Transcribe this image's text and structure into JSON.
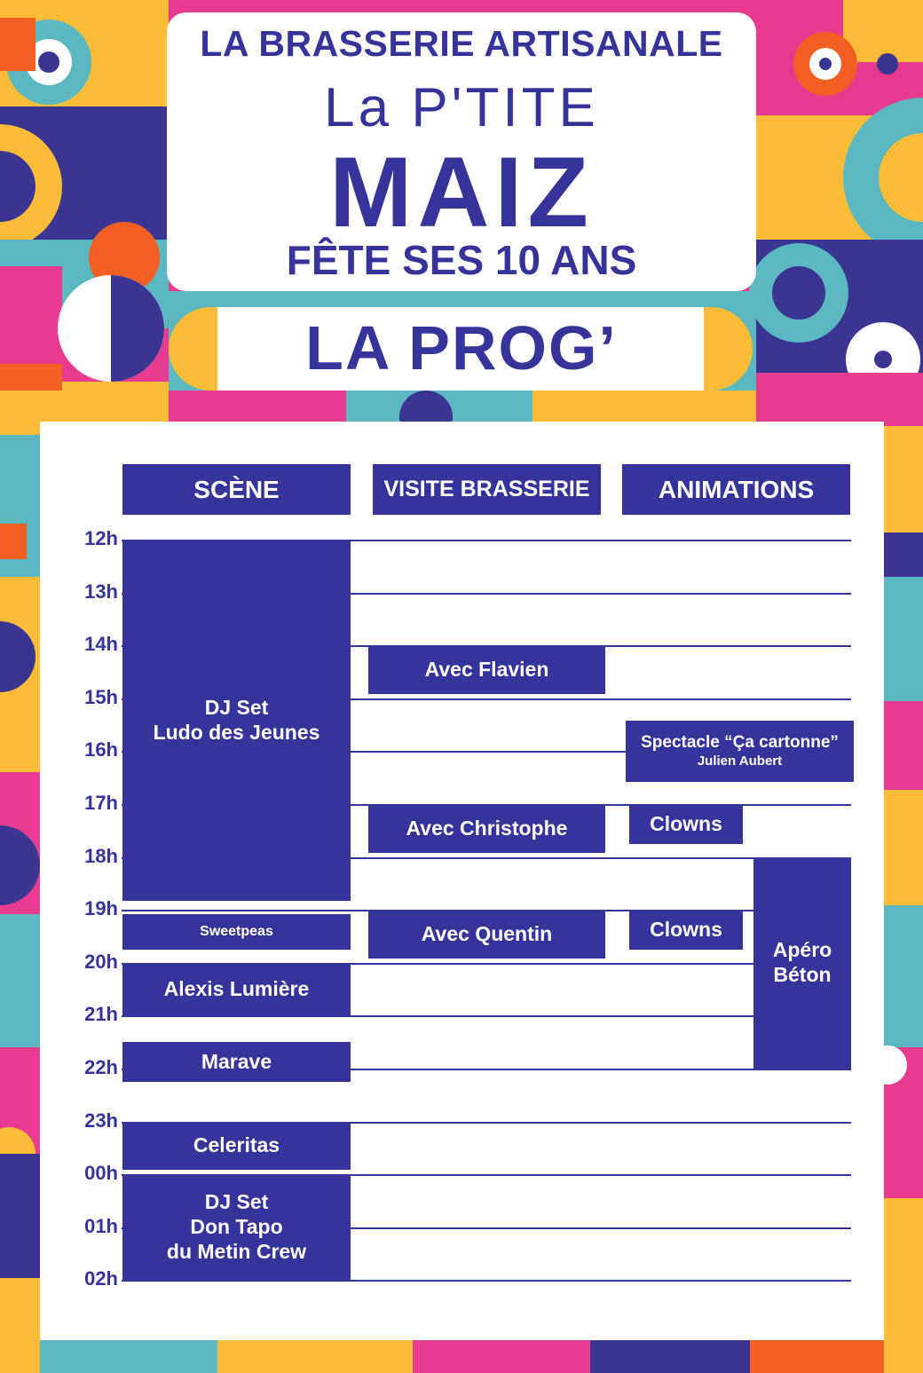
{
  "poster": {
    "line_top": "LA BRASSERIE ARTISANALE",
    "logo_small": "La P'TITE",
    "logo_big": "MAIZ",
    "line_bottom": "FÊTE SES 10 ANS",
    "prog_title": "LA PROG’"
  },
  "colors": {
    "navy": "#36349a",
    "pink": "#e63b8f",
    "teal": "#5bb8c0",
    "yellow": "#fbbd38",
    "orange": "#f16022",
    "white": "#ffffff"
  },
  "columns": [
    "SCÈNE",
    "VISITE BRASSERIE",
    "ANIMATIONS"
  ],
  "hours": [
    "12h",
    "13h",
    "14h",
    "15h",
    "16h",
    "17h",
    "18h",
    "19h",
    "20h",
    "21h",
    "22h",
    "23h",
    "00h",
    "01h",
    "02h"
  ],
  "events": {
    "scene": [
      {
        "start": "12h00",
        "end": "18h50",
        "lines": [
          "DJ Set",
          "Ludo des Jeunes"
        ]
      },
      {
        "start": "19h05",
        "end": "19h45",
        "lines": [
          "Sweetpeas"
        ]
      },
      {
        "start": "20h00",
        "end": "21h00",
        "lines": [
          "Alexis Lumière"
        ]
      },
      {
        "start": "21h30",
        "end": "22h15",
        "lines": [
          "Marave"
        ]
      },
      {
        "start": "23h00",
        "end": "23h55",
        "lines": [
          "Celeritas"
        ]
      },
      {
        "start": "00h00",
        "end": "02h00",
        "lines": [
          "DJ Set",
          "Don Tapo",
          "du Metin Crew"
        ]
      }
    ],
    "visite": [
      {
        "start": "14h00",
        "end": "14h55",
        "lines": [
          "Avec Flavien"
        ]
      },
      {
        "start": "17h00",
        "end": "17h55",
        "lines": [
          "Avec Christophe"
        ]
      },
      {
        "start": "19h00",
        "end": "19h55",
        "lines": [
          "Avec Quentin"
        ]
      }
    ],
    "animations": [
      {
        "start": "15h25",
        "end": "16h35",
        "lines": [
          "Spectacle “Ça cartonne”",
          "Julien Aubert"
        ]
      },
      {
        "start": "17h00",
        "end": "17h45",
        "lines": [
          "Clowns"
        ]
      },
      {
        "start": "19h00",
        "end": "19h45",
        "lines": [
          "Clowns"
        ]
      },
      {
        "start": "18h00",
        "end": "22h00",
        "lines": [
          "Apéro",
          "Béton"
        ]
      }
    ]
  }
}
